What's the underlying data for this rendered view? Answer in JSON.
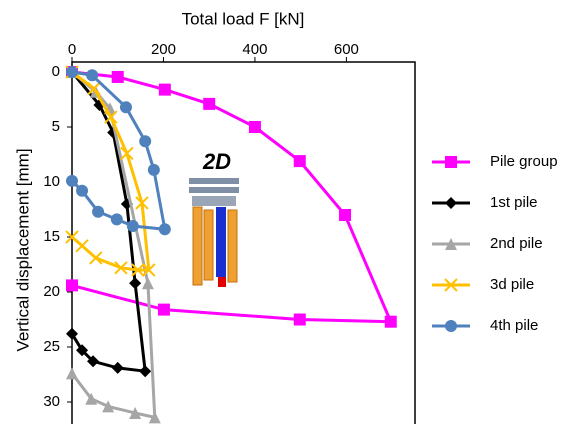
{
  "chart_data": {
    "type": "line",
    "x_label": "Total load F [kN]",
    "y_label": "Vertical displacement [mm]",
    "annotation": "2D",
    "xlim": [
      0,
      750
    ],
    "xticks": [
      0,
      200,
      400,
      600
    ],
    "ylim": [
      0,
      32
    ],
    "yticks": [
      0,
      5,
      10,
      15,
      20,
      25,
      30
    ],
    "y_inverted": true,
    "x_axis_position": "top",
    "series": [
      {
        "name": "Pile group",
        "color": "#ff00ff",
        "marker": "square",
        "x": [
          0,
          100,
          203,
          300,
          400,
          498,
          597,
          697,
          498,
          201,
          0
        ],
        "values": [
          0,
          0.45,
          1.6,
          2.9,
          5,
          8.1,
          13,
          22.7,
          22.5,
          21.6,
          19.4
        ]
      },
      {
        "name": "1st pile",
        "color": "#000000",
        "marker": "diamond",
        "x": [
          0,
          60,
          90,
          120,
          138,
          160,
          100,
          46,
          22,
          0
        ],
        "values": [
          0,
          3,
          5.5,
          12,
          19.2,
          27.2,
          26.9,
          26.3,
          25.3,
          23.8
        ]
      },
      {
        "name": "2nd pile",
        "color": "#a6a6a6",
        "marker": "triangle",
        "x": [
          0,
          52,
          83,
          166,
          181,
          138,
          79,
          42,
          0
        ],
        "values": [
          0,
          1.8,
          3.3,
          19.2,
          31.4,
          31,
          30.4,
          29.7,
          27.4
        ]
      },
      {
        "name": "3d pile",
        "color": "#ffc000",
        "marker": "x",
        "x": [
          0,
          48,
          85,
          120,
          153,
          168,
          144,
          107,
          52,
          22,
          0
        ],
        "values": [
          0,
          1.5,
          4.1,
          7.4,
          11.9,
          18,
          18,
          17.8,
          16.9,
          15.8,
          15
        ]
      },
      {
        "name": "4th pile",
        "color": "#4f81bd",
        "marker": "circle",
        "x": [
          0,
          44,
          118,
          160,
          179,
          203,
          133,
          98,
          57,
          22,
          0
        ],
        "values": [
          0,
          0.3,
          3.2,
          6.3,
          8.9,
          14.3,
          14,
          13.4,
          12.7,
          10.8,
          9.9
        ]
      }
    ]
  }
}
